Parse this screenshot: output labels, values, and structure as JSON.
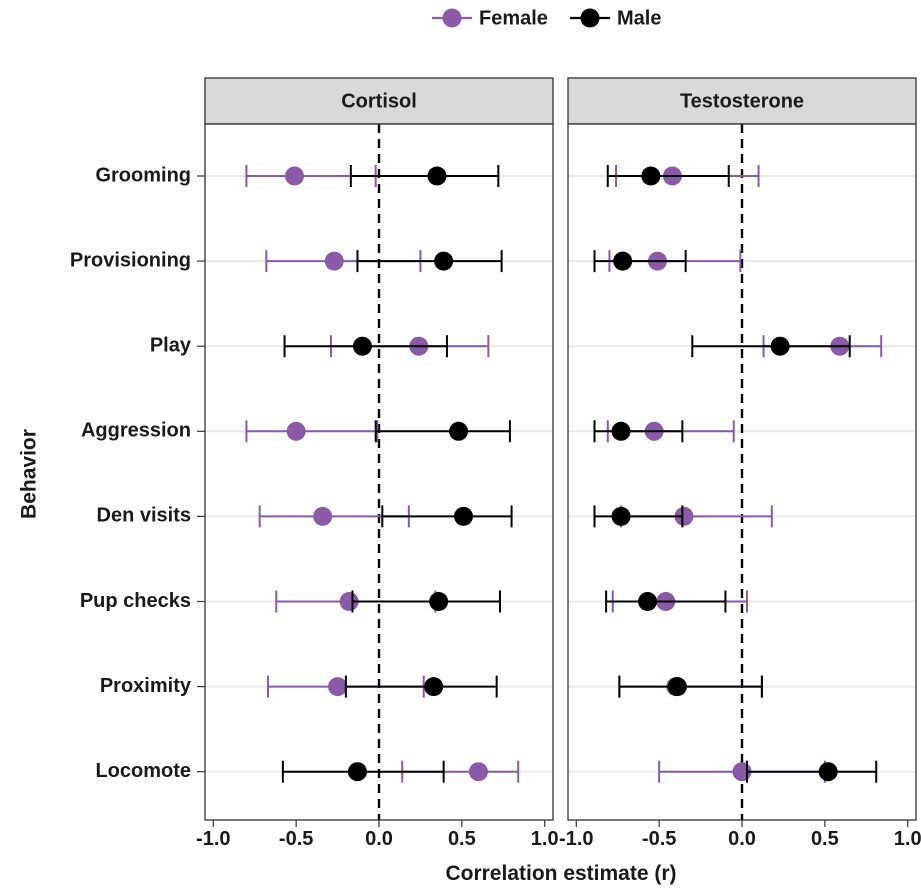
{
  "chart_data": {
    "type": "forest",
    "xlabel": "Correlation estimate (r)",
    "ylabel": "Behavior",
    "xlim": [
      -1.05,
      1.05
    ],
    "x_ticks": [
      -1.0,
      -0.5,
      0.0,
      0.5,
      1.0
    ],
    "x_tick_labels": [
      "-1.0",
      "-0.5",
      "0.0",
      "0.5",
      "1.0"
    ],
    "reference_line_x": 0,
    "grid": "horizontal-major-only",
    "legend_position": "top-center",
    "categories": [
      "Grooming",
      "Provisioning",
      "Play",
      "Aggression",
      "Den visits",
      "Pup checks",
      "Proximity",
      "Locomote"
    ],
    "series": [
      {
        "name": "Female",
        "color": "#8a5aa8"
      },
      {
        "name": "Male",
        "color": "#000000"
      }
    ],
    "panels": [
      {
        "title": "Cortisol",
        "data": {
          "Female": [
            {
              "category": "Grooming",
              "estimate": -0.51,
              "lower": -0.8,
              "upper": -0.02
            },
            {
              "category": "Provisioning",
              "estimate": -0.27,
              "lower": -0.68,
              "upper": 0.25
            },
            {
              "category": "Play",
              "estimate": 0.24,
              "lower": -0.29,
              "upper": 0.66
            },
            {
              "category": "Aggression",
              "estimate": -0.5,
              "lower": -0.8,
              "upper": -0.01
            },
            {
              "category": "Den visits",
              "estimate": -0.34,
              "lower": -0.72,
              "upper": 0.18
            },
            {
              "category": "Pup checks",
              "estimate": -0.18,
              "lower": -0.62,
              "upper": 0.34
            },
            {
              "category": "Proximity",
              "estimate": -0.25,
              "lower": -0.67,
              "upper": 0.27
            },
            {
              "category": "Locomote",
              "estimate": 0.6,
              "lower": 0.14,
              "upper": 0.84
            }
          ],
          "Male": [
            {
              "category": "Grooming",
              "estimate": 0.35,
              "lower": -0.17,
              "upper": 0.72
            },
            {
              "category": "Provisioning",
              "estimate": 0.39,
              "lower": -0.13,
              "upper": 0.74
            },
            {
              "category": "Play",
              "estimate": -0.1,
              "lower": -0.57,
              "upper": 0.41
            },
            {
              "category": "Aggression",
              "estimate": 0.48,
              "lower": -0.02,
              "upper": 0.79
            },
            {
              "category": "Den visits",
              "estimate": 0.51,
              "lower": 0.02,
              "upper": 0.8
            },
            {
              "category": "Pup checks",
              "estimate": 0.36,
              "lower": -0.16,
              "upper": 0.73
            },
            {
              "category": "Proximity",
              "estimate": 0.33,
              "lower": -0.2,
              "upper": 0.71
            },
            {
              "category": "Locomote",
              "estimate": -0.13,
              "lower": -0.58,
              "upper": 0.39
            }
          ]
        }
      },
      {
        "title": "Testosterone",
        "data": {
          "Female": [
            {
              "category": "Grooming",
              "estimate": -0.42,
              "lower": -0.76,
              "upper": 0.1
            },
            {
              "category": "Provisioning",
              "estimate": -0.51,
              "lower": -0.8,
              "upper": -0.01
            },
            {
              "category": "Play",
              "estimate": 0.59,
              "lower": 0.13,
              "upper": 0.84
            },
            {
              "category": "Aggression",
              "estimate": -0.53,
              "lower": -0.81,
              "upper": -0.05
            },
            {
              "category": "Den visits",
              "estimate": -0.35,
              "lower": -0.73,
              "upper": 0.18
            },
            {
              "category": "Pup checks",
              "estimate": -0.46,
              "lower": -0.78,
              "upper": 0.03
            },
            {
              "category": "Proximity",
              "estimate": -0.4,
              "lower": -0.74,
              "upper": 0.12
            },
            {
              "category": "Locomote",
              "estimate": 0.0,
              "lower": -0.5,
              "upper": 0.5
            }
          ],
          "Male": [
            {
              "category": "Grooming",
              "estimate": -0.55,
              "lower": -0.81,
              "upper": -0.08
            },
            {
              "category": "Provisioning",
              "estimate": -0.72,
              "lower": -0.89,
              "upper": -0.34
            },
            {
              "category": "Play",
              "estimate": 0.23,
              "lower": -0.3,
              "upper": 0.65
            },
            {
              "category": "Aggression",
              "estimate": -0.73,
              "lower": -0.89,
              "upper": -0.36
            },
            {
              "category": "Den visits",
              "estimate": -0.73,
              "lower": -0.89,
              "upper": -0.36
            },
            {
              "category": "Pup checks",
              "estimate": -0.57,
              "lower": -0.82,
              "upper": -0.1
            },
            {
              "category": "Proximity",
              "estimate": -0.39,
              "lower": -0.74,
              "upper": 0.12
            },
            {
              "category": "Locomote",
              "estimate": 0.52,
              "lower": 0.03,
              "upper": 0.81
            }
          ]
        }
      }
    ]
  }
}
